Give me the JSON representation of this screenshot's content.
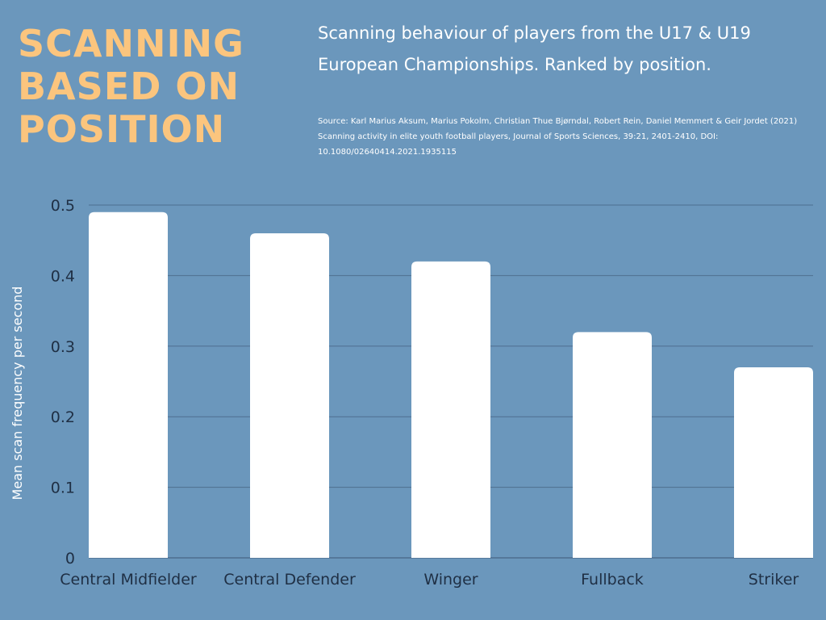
{
  "header": {
    "title_lines": [
      "SCANNING",
      "BASED ON",
      "POSITION"
    ],
    "subtitle": "Scanning behaviour of players from the U17 & U19 European Championships. Ranked by position.",
    "source": "Source: Karl Marius Aksum, Marius Pokolm, Christian Thue Bjørndal, Robert Rein, Daniel Memmert & Geir Jordet (2021) Scanning activity in elite youth football players, Journal of Sports Sciences, 39:21, 2401-2410, DOI: 10.1080/02640414.2021.1935115"
  },
  "colors": {
    "background": "#6b97bc",
    "title": "#fbc57e",
    "bar": "#ffffff",
    "gridline": "#4e6f8f",
    "axis_text": "#1f2f44"
  },
  "chart_data": {
    "type": "bar",
    "categories": [
      "Central Midfielder",
      "Central Defender",
      "Winger",
      "Fullback",
      "Striker"
    ],
    "values": [
      0.49,
      0.46,
      0.42,
      0.32,
      0.27
    ],
    "ylabel": "Mean scan frequency per second",
    "xlabel": "",
    "ylim": [
      0,
      0.5
    ],
    "yticks": [
      0,
      0.1,
      0.2,
      0.3,
      0.4,
      0.5
    ],
    "ytick_labels": [
      "0",
      "0.1",
      "0.2",
      "0.3",
      "0.4",
      "0.5"
    ],
    "grid": true
  }
}
